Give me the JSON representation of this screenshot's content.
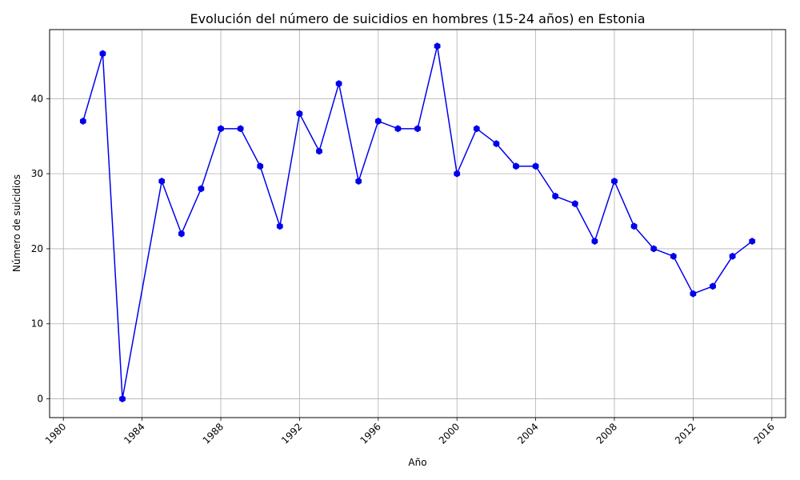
{
  "chart_data": {
    "type": "line",
    "title": "Evolución del número de suicidios en hombres (15-24 años) en Estonia",
    "xlabel": "Año",
    "ylabel": "Número de suicidios",
    "x_ticks": [
      "1980",
      "1984",
      "1988",
      "1992",
      "1996",
      "2000",
      "2004",
      "2008",
      "2012",
      "2016"
    ],
    "y_ticks": [
      "0",
      "10",
      "20",
      "30",
      "40"
    ],
    "xlim": [
      1979.3,
      2016.7
    ],
    "ylim": [
      -2.5,
      49.2
    ],
    "grid": true,
    "x_tick_rotation_deg": 45,
    "series": [
      {
        "color": "#0000ee",
        "marker": "hexagon",
        "points": [
          {
            "x": 1981,
            "y": 37
          },
          {
            "x": 1982,
            "y": 46
          },
          {
            "x": 1983,
            "y": 0
          },
          {
            "x": 1985,
            "y": 29
          },
          {
            "x": 1986,
            "y": 22
          },
          {
            "x": 1987,
            "y": 28
          },
          {
            "x": 1988,
            "y": 36
          },
          {
            "x": 1989,
            "y": 36
          },
          {
            "x": 1990,
            "y": 31
          },
          {
            "x": 1991,
            "y": 23
          },
          {
            "x": 1992,
            "y": 38
          },
          {
            "x": 1993,
            "y": 33
          },
          {
            "x": 1994,
            "y": 42
          },
          {
            "x": 1995,
            "y": 29
          },
          {
            "x": 1996,
            "y": 37
          },
          {
            "x": 1997,
            "y": 36
          },
          {
            "x": 1998,
            "y": 36
          },
          {
            "x": 1999,
            "y": 47
          },
          {
            "x": 2000,
            "y": 30
          },
          {
            "x": 2001,
            "y": 36
          },
          {
            "x": 2002,
            "y": 34
          },
          {
            "x": 2003,
            "y": 31
          },
          {
            "x": 2004,
            "y": 31
          },
          {
            "x": 2005,
            "y": 27
          },
          {
            "x": 2006,
            "y": 26
          },
          {
            "x": 2007,
            "y": 21
          },
          {
            "x": 2008,
            "y": 29
          },
          {
            "x": 2009,
            "y": 23
          },
          {
            "x": 2010,
            "y": 20
          },
          {
            "x": 2011,
            "y": 19
          },
          {
            "x": 2012,
            "y": 14
          },
          {
            "x": 2013,
            "y": 15
          },
          {
            "x": 2014,
            "y": 19
          },
          {
            "x": 2015,
            "y": 21
          }
        ]
      }
    ]
  }
}
